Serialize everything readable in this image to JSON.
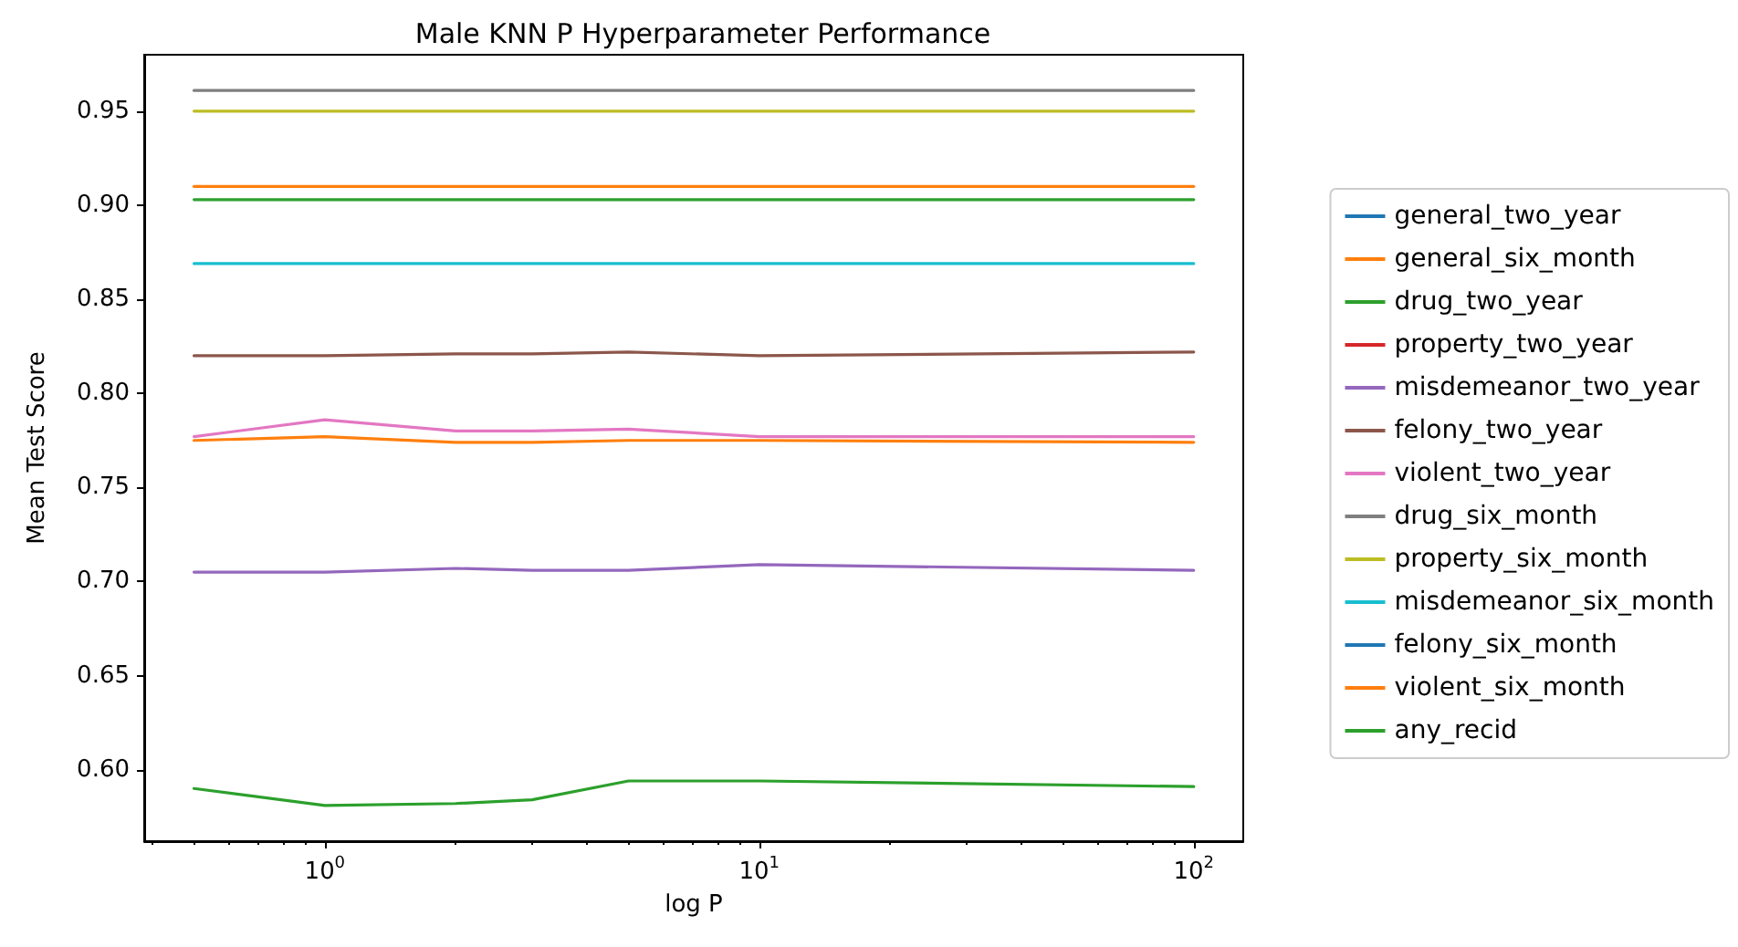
{
  "chart_data": {
    "type": "line",
    "title": "Male KNN P Hyperparameter Performance",
    "xlabel": "log P",
    "ylabel": "Mean Test Score",
    "x": [
      0.5,
      1,
      2,
      3,
      5,
      10,
      100
    ],
    "log": "x",
    "xlim": [
      0.384,
      130
    ],
    "xticks": [
      {
        "value": 1,
        "label": "10$^{0}$"
      },
      {
        "value": 10,
        "label": "10$^{1}$"
      },
      {
        "value": 100,
        "label": "10$^{2}$"
      }
    ],
    "ylim": [
      0.562,
      0.98
    ],
    "yticks": [
      {
        "value": 0.6,
        "label": "0.60"
      },
      0.65,
      {
        "value": 0.7,
        "label": "0.70"
      },
      0.75,
      {
        "value": 0.8,
        "label": "0.80"
      },
      0.85,
      {
        "value": 0.9,
        "label": "0.90"
      },
      0.95
    ],
    "grid": false,
    "legend": "right",
    "marker": "none",
    "line_style": "solid",
    "series": [
      {
        "name": "general_two_year",
        "color": "#1f77b4",
        "values": [
          null,
          null,
          null,
          null,
          null,
          null,
          null
        ]
      },
      {
        "name": "general_six_month",
        "color": "#ff7f0e",
        "values": [
          0.775,
          0.777,
          0.774,
          0.774,
          0.775,
          0.775,
          0.774
        ]
      },
      {
        "name": "drug_two_year",
        "color": "#2ca02c",
        "values": [
          0.903,
          0.903,
          0.903,
          0.903,
          0.903,
          0.903,
          0.903
        ]
      },
      {
        "name": "property_two_year",
        "color": "#d62728",
        "values": [
          null,
          null,
          null,
          null,
          null,
          null,
          null
        ]
      },
      {
        "name": "misdemeanor_two_year",
        "color": "#9467bd",
        "values": [
          0.705,
          0.705,
          0.707,
          0.706,
          0.706,
          0.709,
          0.706
        ]
      },
      {
        "name": "felony_two_year",
        "color": "#8c564b",
        "values": [
          0.82,
          0.82,
          0.821,
          0.821,
          0.822,
          0.82,
          0.822
        ]
      },
      {
        "name": "violent_two_year",
        "color": "#e377c2",
        "values": [
          0.777,
          0.786,
          0.78,
          0.78,
          0.781,
          0.777,
          0.777
        ]
      },
      {
        "name": "drug_six_month",
        "color": "#7f7f7f",
        "values": [
          0.961,
          0.961,
          0.961,
          0.961,
          0.961,
          0.961,
          0.961
        ]
      },
      {
        "name": "property_six_month",
        "color": "#bcbd22",
        "values": [
          0.95,
          0.95,
          0.95,
          0.95,
          0.95,
          0.95,
          0.95
        ]
      },
      {
        "name": "misdemeanor_six_month",
        "color": "#17becf",
        "values": [
          0.869,
          0.869,
          0.869,
          0.869,
          0.869,
          0.869,
          0.869
        ]
      },
      {
        "name": "felony_six_month",
        "color": "#1f77b4",
        "values": [
          null,
          null,
          null,
          null,
          null,
          null,
          null
        ]
      },
      {
        "name": "violent_six_month",
        "color": "#ff7f0e",
        "values": [
          0.91,
          0.91,
          0.91,
          0.91,
          0.91,
          0.91,
          0.91
        ]
      },
      {
        "name": "any_recid",
        "color": "#2ca02c",
        "values": [
          0.59,
          0.581,
          0.582,
          0.584,
          0.594,
          0.594,
          0.591
        ]
      }
    ]
  }
}
